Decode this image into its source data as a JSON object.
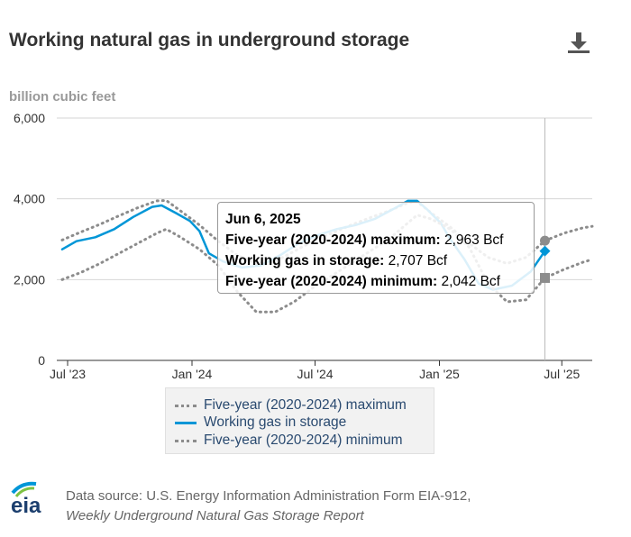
{
  "header": {
    "title": "Working natural gas in underground storage",
    "subtitle": "billion cubic feet",
    "download_icon": "download-icon"
  },
  "chart_data": {
    "type": "line",
    "title": "Working natural gas in underground storage",
    "ylabel": "billion cubic feet",
    "ylim": [
      0,
      6000
    ],
    "yticks": [
      "0",
      "2,000",
      "4,000",
      "6,000"
    ],
    "xticks": [
      "Jul '23",
      "Jan '24",
      "Jul '24",
      "Jan '25",
      "Jul '25"
    ],
    "xlim": [
      "2023-06-15",
      "2025-08-15"
    ],
    "grid": true,
    "legend_position": "bottom",
    "series": [
      {
        "name": "Five-year (2020-2024) maximum",
        "color": "#8c8c8c",
        "style": "dotted",
        "x": [
          "2023-06-23",
          "2023-07-21",
          "2023-08-18",
          "2023-09-15",
          "2023-10-13",
          "2023-11-10",
          "2023-11-24",
          "2023-12-15",
          "2024-01-12",
          "2024-02-09",
          "2024-03-08",
          "2024-04-05",
          "2024-05-03",
          "2024-05-31",
          "2024-06-28",
          "2024-07-26",
          "2024-08-23",
          "2024-09-20",
          "2024-10-18",
          "2024-11-15",
          "2024-11-29",
          "2024-12-20",
          "2025-01-17",
          "2025-02-14",
          "2025-03-14",
          "2025-04-11",
          "2025-05-09",
          "2025-06-06",
          "2025-07-04",
          "2025-08-01",
          "2025-08-15"
        ],
        "values": [
          2980,
          3180,
          3370,
          3580,
          3780,
          3950,
          3960,
          3700,
          3350,
          2950,
          2600,
          2400,
          2450,
          2700,
          2950,
          3150,
          3350,
          3530,
          3700,
          3900,
          3930,
          3650,
          3300,
          2900,
          2550,
          2400,
          2550,
          2963,
          3150,
          3280,
          3320
        ]
      },
      {
        "name": "Working gas in storage",
        "color": "#0096d7",
        "style": "solid",
        "x": [
          "2023-06-23",
          "2023-07-14",
          "2023-08-11",
          "2023-09-08",
          "2023-10-06",
          "2023-11-03",
          "2023-11-17",
          "2023-12-08",
          "2023-12-29",
          "2024-01-12",
          "2024-01-26",
          "2024-02-16",
          "2024-03-15",
          "2024-04-12",
          "2024-05-10",
          "2024-06-07",
          "2024-07-05",
          "2024-08-02",
          "2024-08-30",
          "2024-09-27",
          "2024-10-25",
          "2024-11-15",
          "2024-11-29",
          "2024-12-13",
          "2025-01-03",
          "2025-01-17",
          "2025-02-07",
          "2025-02-28",
          "2025-03-21",
          "2025-04-18",
          "2025-05-16",
          "2025-06-06"
        ],
        "values": [
          2750,
          2950,
          3050,
          3250,
          3550,
          3800,
          3836,
          3650,
          3450,
          3200,
          2650,
          2450,
          2300,
          2350,
          2600,
          2900,
          3100,
          3250,
          3350,
          3500,
          3750,
          3950,
          3950,
          3750,
          3400,
          3000,
          2500,
          1900,
          1750,
          1850,
          2200,
          2707
        ]
      },
      {
        "name": "Five-year (2020-2024) minimum",
        "color": "#8c8c8c",
        "style": "dotted",
        "x": [
          "2023-06-23",
          "2023-07-21",
          "2023-08-18",
          "2023-09-15",
          "2023-10-13",
          "2023-11-10",
          "2023-11-24",
          "2023-12-15",
          "2024-01-12",
          "2024-02-09",
          "2024-03-08",
          "2024-04-05",
          "2024-05-03",
          "2024-05-31",
          "2024-06-28",
          "2024-07-26",
          "2024-08-23",
          "2024-09-20",
          "2024-10-18",
          "2024-11-15",
          "2024-11-29",
          "2024-12-20",
          "2025-01-17",
          "2025-02-14",
          "2025-03-14",
          "2025-04-11",
          "2025-05-09",
          "2025-06-06",
          "2025-07-04",
          "2025-08-01",
          "2025-08-15"
        ],
        "values": [
          2000,
          2180,
          2400,
          2650,
          2900,
          3150,
          3250,
          3050,
          2750,
          2350,
          1700,
          1200,
          1200,
          1450,
          1800,
          2100,
          2400,
          2700,
          3000,
          3400,
          3600,
          3500,
          3250,
          2800,
          1900,
          1450,
          1500,
          2042,
          2250,
          2430,
          2500
        ]
      }
    ],
    "highlight": {
      "date": "2025-06-06",
      "max": 2963,
      "storage": 2707,
      "min": 2042
    }
  },
  "tooltip": {
    "date": "Jun 6, 2025",
    "max_label": "Five-year (2020-2024) maximum:",
    "max_value": "2,963 Bcf",
    "storage_label": "Working gas in storage:",
    "storage_value": "2,707 Bcf",
    "min_label": "Five-year (2020-2024) minimum:",
    "min_value": "2,042 Bcf"
  },
  "legend": {
    "items": [
      {
        "label": "Five-year (2020-2024) maximum"
      },
      {
        "label": "Working gas in storage"
      },
      {
        "label": "Five-year (2020-2024) minimum"
      }
    ]
  },
  "footer": {
    "logo_text": "eia",
    "source_line1": "Data source: U.S. Energy Information Administration Form EIA-912,",
    "source_line2": "Weekly Underground Natural Gas Storage Report"
  }
}
